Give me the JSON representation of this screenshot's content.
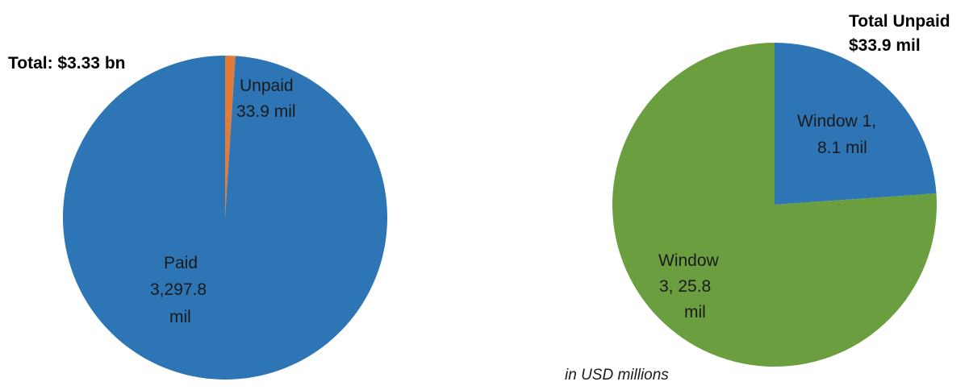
{
  "note": "in USD millions",
  "chart_data": [
    {
      "type": "pie",
      "title": "Total: $3.33 bn",
      "start_angle_deg": 0,
      "direction": "clockwise",
      "colors": {
        "Unpaid": "#e07b39",
        "Paid": "#2e75b6"
      },
      "slices": [
        {
          "name": "Unpaid",
          "value": 33.9,
          "label_lines": [
            "Unpaid",
            "33.9  mil"
          ]
        },
        {
          "name": "Paid",
          "value": 3297.8,
          "label_lines": [
            "Paid",
            "3,297.8",
            "mil"
          ]
        }
      ]
    },
    {
      "type": "pie",
      "title_lines": [
        "Total Unpaid",
        "$33.9 mil"
      ],
      "start_angle_deg": 0,
      "direction": "clockwise",
      "colors": {
        "Window 1": "#2e75b6",
        "Window 3": "#6a9e3f"
      },
      "slices": [
        {
          "name": "Window 1",
          "value": 8.1,
          "label_lines": [
            "Window 1,",
            "8.1 mil"
          ]
        },
        {
          "name": "Window 3",
          "value": 25.8,
          "label_lines": [
            "Window",
            "3,  25.8",
            "mil"
          ]
        }
      ]
    }
  ]
}
